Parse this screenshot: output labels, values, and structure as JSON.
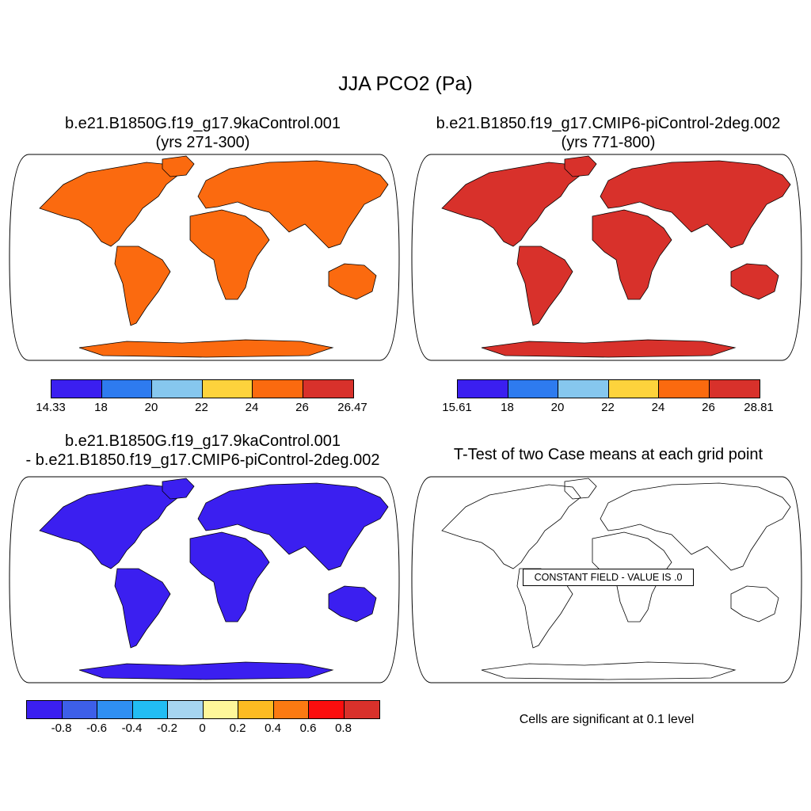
{
  "title": "JJA PCO2 (Pa)",
  "panels": [
    {
      "title_line1": "b.e21.B1850G.f19_g17.9kaControl.001",
      "title_line2": "(yrs 271-300)",
      "colorbar": {
        "labels": [
          "14.33",
          "18",
          "20",
          "22",
          "24",
          "26",
          "26.47"
        ],
        "colors": [
          "#3b1ff0",
          "#2e7bef",
          "#86c7ee",
          "#fdd33c",
          "#fb6a0f",
          "#d8312b"
        ]
      },
      "map_fill": "#fb6a0f"
    },
    {
      "title_line1": "b.e21.B1850.f19_g17.CMIP6-piControl-2deg.002",
      "title_line2": "(yrs 771-800)",
      "colorbar": {
        "labels": [
          "15.61",
          "18",
          "20",
          "22",
          "24",
          "26",
          "28.81"
        ],
        "colors": [
          "#3b1ff0",
          "#2e7bef",
          "#86c7ee",
          "#fdd33c",
          "#fb6a0f",
          "#d8312b"
        ]
      },
      "map_fill": "#d8312b"
    },
    {
      "title_line1": "b.e21.B1850G.f19_g17.9kaControl.001",
      "title_line2": "- b.e21.B1850.f19_g17.CMIP6-piControl-2deg.002",
      "colorbar": {
        "labels": [
          "-0.8",
          "-0.6",
          "-0.4",
          "-0.2",
          "0",
          "0.2",
          "0.4",
          "0.6",
          "0.8"
        ],
        "colors": [
          "#3b1ff0",
          "#3d5fe8",
          "#2f8ff2",
          "#22bdf3",
          "#a6d5f0",
          "#fef79a",
          "#fcbb22",
          "#fb7a12",
          "#fb0e0e",
          "#d8312b"
        ]
      },
      "map_fill": "#3b1ff0"
    },
    {
      "title_line1": "T-Test of two Case means at each grid point",
      "constant_label": "CONSTANT FIELD - VALUE IS .0",
      "note": "Cells are significant at 0.1 level"
    }
  ]
}
